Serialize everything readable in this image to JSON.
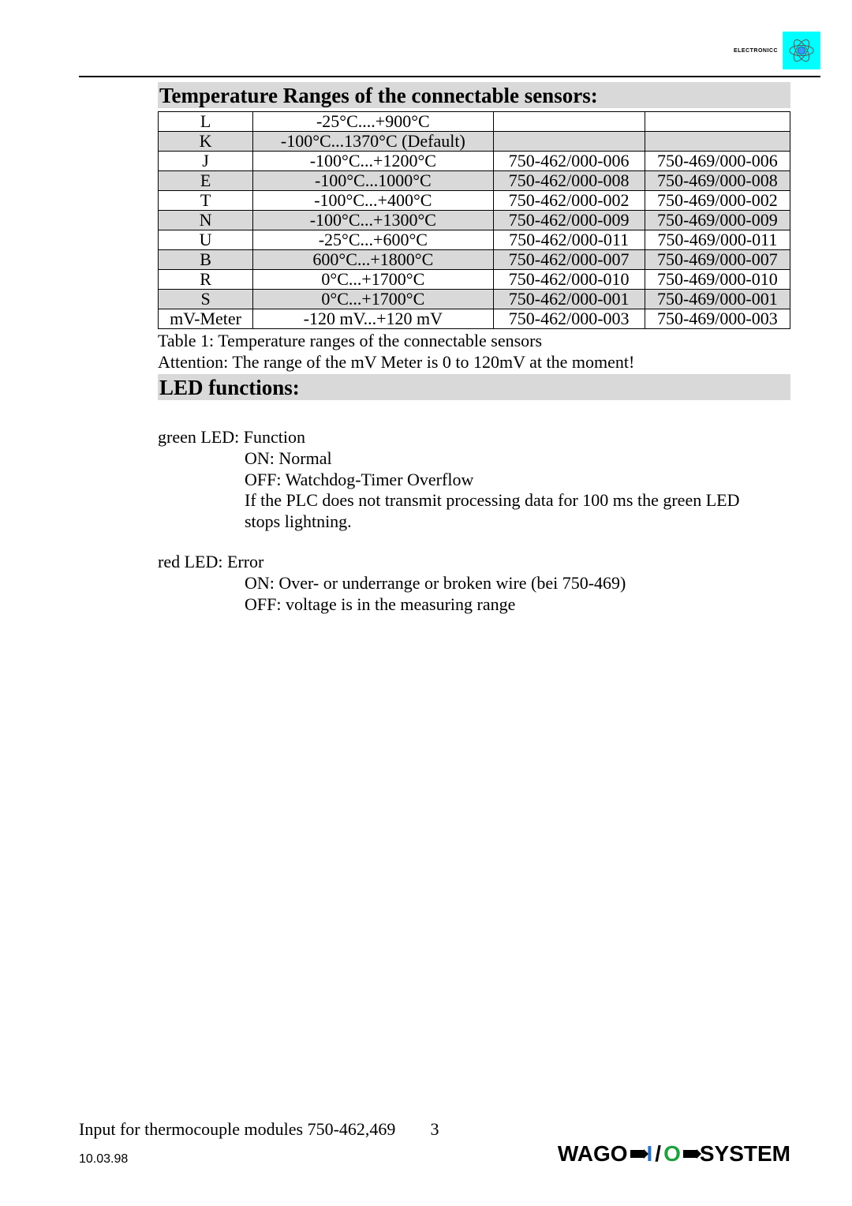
{
  "header": {
    "logo_text": "ELECTRONICC",
    "atom_core_color": "#3399ff",
    "logo_bg": "#00ffff"
  },
  "section1": {
    "title": "Temperature Ranges of the connectable sensors:",
    "caption": "Table 1: Temperature ranges of the connectable sensors",
    "attention": "Attention: The range of the mV Meter is 0 to 120mV at the moment!"
  },
  "table": {
    "rows": [
      {
        "type": "L",
        "range": "-25°C....+900°C",
        "p462": "",
        "p469": "",
        "shaded": false
      },
      {
        "type": "K",
        "range": "-100°C...1370°C (Default)",
        "p462": "",
        "p469": "",
        "shaded": true
      },
      {
        "type": "J",
        "range": "-100°C...+1200°C",
        "p462": "750-462/000-006",
        "p469": "750-469/000-006",
        "shaded": false
      },
      {
        "type": "E",
        "range": "-100°C...1000°C",
        "p462": "750-462/000-008",
        "p469": "750-469/000-008",
        "shaded": true
      },
      {
        "type": "T",
        "range": "-100°C...+400°C",
        "p462": "750-462/000-002",
        "p469": "750-469/000-002",
        "shaded": false
      },
      {
        "type": "N",
        "range": "-100°C...+1300°C",
        "p462": "750-462/000-009",
        "p469": "750-469/000-009",
        "shaded": true
      },
      {
        "type": "U",
        "range": "-25°C...+600°C",
        "p462": "750-462/000-011",
        "p469": "750-469/000-011",
        "shaded": false
      },
      {
        "type": "B",
        "range": "600°C...+1800°C",
        "p462": "750-462/000-007",
        "p469": "750-469/000-007",
        "shaded": true
      },
      {
        "type": "R",
        "range": "0°C...+1700°C",
        "p462": "750-462/000-010",
        "p469": "750-469/000-010",
        "shaded": false
      },
      {
        "type": "S",
        "range": "0°C...+1700°C",
        "p462": "750-462/000-001",
        "p469": "750-469/000-001",
        "shaded": true
      },
      {
        "type": "mV-Meter",
        "range": "-120 mV...+120 mV",
        "p462": "750-462/000-003",
        "p469": "750-469/000-003",
        "shaded": false
      }
    ]
  },
  "section2": {
    "title": "LED functions:",
    "green_header": "green LED: Function",
    "green_on": "ON: Normal",
    "green_off": "OFF: Watchdog-Timer Overflow",
    "green_note1": "If the PLC does not transmit processing data for 100 ms the green LED",
    "green_note2": "stops lightning.",
    "red_header": "red LED: Error",
    "red_on": "ON: Over- or underrange or broken wire (bei 750-469)",
    "red_off": "OFF: voltage is in the measuring range"
  },
  "footer": {
    "left": "Input for thermocouple modules 750-462,469",
    "page": "3",
    "date": "10.03.98",
    "logo": {
      "wago": "WAGO",
      "i": "I",
      "slash": "/",
      "o": "O",
      "sys": "SYSTEM"
    }
  },
  "colors": {
    "shade": "#d9d9d9",
    "text": "#000000",
    "bg": "#ffffff",
    "logo_i": "#3070c0",
    "logo_o": "#20a040"
  }
}
